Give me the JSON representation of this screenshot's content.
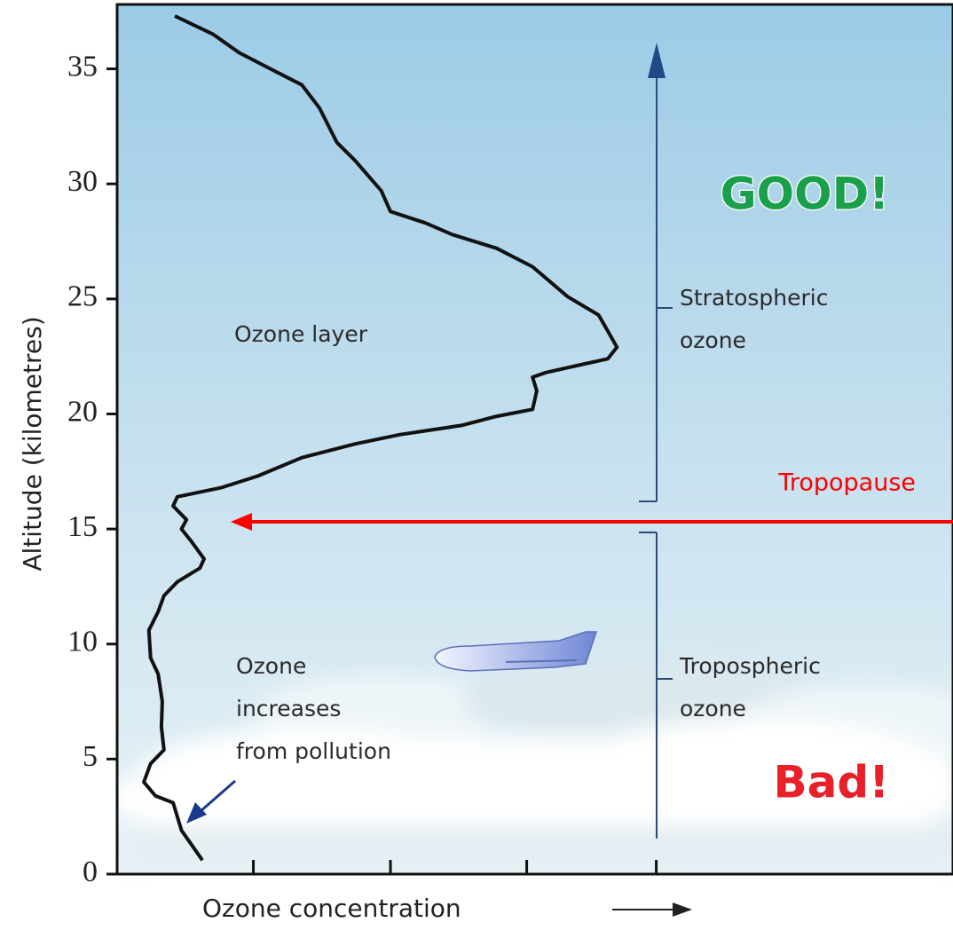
{
  "chart_data": {
    "type": "line",
    "ylabel": "Altitude (kilometres)",
    "xlabel": "Ozone concentration",
    "ylim": [
      0,
      37.8
    ],
    "yticks": [
      0,
      5,
      10,
      15,
      20,
      25,
      30,
      35
    ],
    "xlim": [
      0,
      100
    ],
    "xticks": [
      16.3,
      32.7,
      49.0,
      64.5
    ],
    "color": "#111111",
    "x": [
      10.2,
      7.7,
      6.7,
      4.6,
      3.2,
      4.0,
      5.6,
      5.3,
      5.4,
      4.9,
      4.0,
      3.8,
      4.9,
      5.6,
      7.2,
      9.9,
      10.4,
      8.8,
      7.7,
      8.3,
      6.7,
      7.2,
      12.5,
      16.8,
      22.1,
      28.5,
      33.8,
      41.2,
      45.4,
      49.7,
      50.2,
      49.7,
      51.3,
      55.0,
      58.7,
      59.8,
      58.7,
      57.6,
      53.9,
      49.7,
      45.4,
      40.1,
      36.9,
      32.7,
      31.6,
      28.5,
      26.3,
      24.2,
      22.1,
      17.8,
      14.6,
      11.5,
      6.9
    ],
    "values": [
      0.6,
      1.9,
      3.1,
      3.4,
      4.0,
      4.8,
      5.4,
      6.4,
      7.5,
      8.7,
      9.4,
      10.6,
      11.4,
      12.1,
      12.7,
      13.3,
      13.7,
      14.5,
      15.0,
      15.4,
      16.0,
      16.4,
      16.8,
      17.3,
      18.1,
      18.7,
      19.1,
      19.5,
      19.9,
      20.2,
      21.0,
      21.6,
      21.8,
      22.1,
      22.4,
      22.9,
      23.6,
      24.3,
      25.1,
      26.4,
      27.2,
      27.8,
      28.3,
      28.8,
      29.7,
      31.0,
      31.8,
      33.3,
      34.3,
      35.1,
      35.7,
      36.5,
      37.3
    ],
    "annotations": {
      "ozone_layer": "Ozone layer",
      "pollution": [
        "Ozone",
        "increases",
        "from pollution"
      ],
      "stratospheric": [
        "Stratospheric",
        "ozone"
      ],
      "tropospheric": [
        "Tropospheric",
        "ozone"
      ],
      "good": "GOOD!",
      "bad": "Bad!",
      "tropopause": "Tropopause"
    }
  }
}
